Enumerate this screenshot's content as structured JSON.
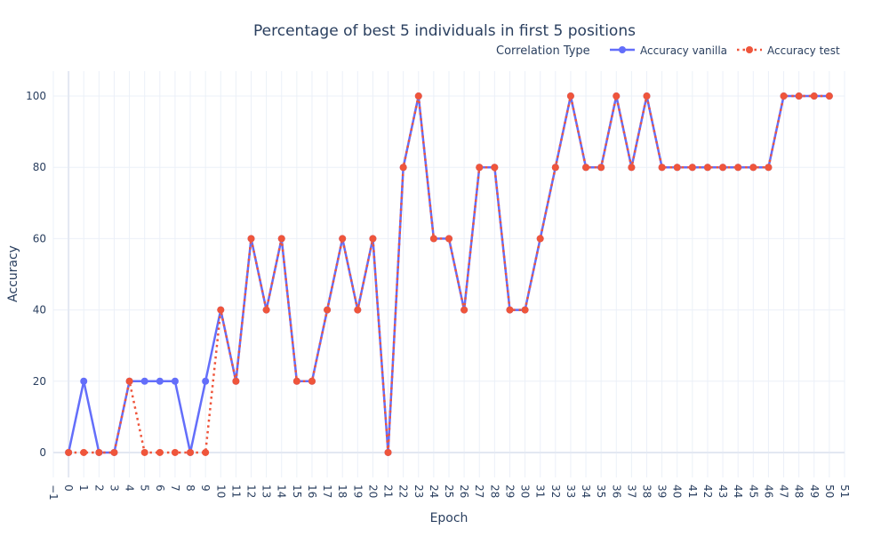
{
  "chart_data": {
    "type": "line",
    "title": "Percentage of best 5 individuals in first 5 positions",
    "xlabel": "Epoch",
    "ylabel": "Accuracy",
    "legend_title": "Correlation Type",
    "legend_position": "top-right",
    "grid": true,
    "xlim": [
      -1,
      51
    ],
    "ylim": [
      -7,
      107
    ],
    "x_ticks": [
      -1,
      0,
      1,
      2,
      3,
      4,
      5,
      6,
      7,
      8,
      9,
      10,
      11,
      12,
      13,
      14,
      15,
      16,
      17,
      18,
      19,
      20,
      21,
      22,
      23,
      24,
      25,
      26,
      27,
      28,
      29,
      30,
      31,
      32,
      33,
      34,
      35,
      36,
      37,
      38,
      39,
      40,
      41,
      42,
      43,
      44,
      45,
      46,
      47,
      48,
      49,
      50,
      51
    ],
    "x_tick_labels": [
      "−1",
      "0",
      "1",
      "2",
      "3",
      "4",
      "5",
      "6",
      "7",
      "8",
      "9",
      "10",
      "11",
      "12",
      "13",
      "14",
      "15",
      "16",
      "17",
      "18",
      "19",
      "20",
      "21",
      "22",
      "23",
      "24",
      "25",
      "26",
      "27",
      "28",
      "29",
      "30",
      "31",
      "32",
      "33",
      "34",
      "35",
      "36",
      "37",
      "38",
      "39",
      "40",
      "41",
      "42",
      "43",
      "44",
      "45",
      "46",
      "47",
      "48",
      "49",
      "50",
      "51"
    ],
    "y_ticks": [
      0,
      20,
      40,
      60,
      80,
      100
    ],
    "y_tick_labels": [
      "0",
      "20",
      "40",
      "60",
      "80",
      "100"
    ],
    "x": [
      0,
      1,
      2,
      3,
      4,
      5,
      6,
      7,
      8,
      9,
      10,
      11,
      12,
      13,
      14,
      15,
      16,
      17,
      18,
      19,
      20,
      21,
      22,
      23,
      24,
      25,
      26,
      27,
      28,
      29,
      30,
      31,
      32,
      33,
      34,
      35,
      36,
      37,
      38,
      39,
      40,
      41,
      42,
      43,
      44,
      45,
      46,
      47,
      48,
      49,
      50
    ],
    "series": [
      {
        "name": "Accuracy vanilla",
        "color": "#636efa",
        "dash": "solid",
        "values": [
          0,
          20,
          0,
          0,
          20,
          20,
          20,
          20,
          0,
          20,
          40,
          20,
          60,
          40,
          60,
          20,
          20,
          40,
          60,
          40,
          60,
          0,
          80,
          100,
          60,
          60,
          40,
          80,
          80,
          40,
          40,
          60,
          80,
          100,
          80,
          80,
          100,
          80,
          100,
          80,
          80,
          80,
          80,
          80,
          80,
          80,
          80,
          100,
          100,
          100,
          100
        ]
      },
      {
        "name": "Accuracy test",
        "color": "#ef553b",
        "dash": "dot",
        "values": [
          0,
          0,
          0,
          0,
          20,
          0,
          0,
          0,
          0,
          0,
          40,
          20,
          60,
          40,
          60,
          20,
          20,
          40,
          60,
          40,
          60,
          0,
          80,
          100,
          60,
          60,
          40,
          80,
          80,
          40,
          40,
          60,
          80,
          100,
          80,
          80,
          100,
          80,
          100,
          80,
          80,
          80,
          80,
          80,
          80,
          80,
          80,
          100,
          100,
          100,
          100
        ]
      }
    ]
  }
}
